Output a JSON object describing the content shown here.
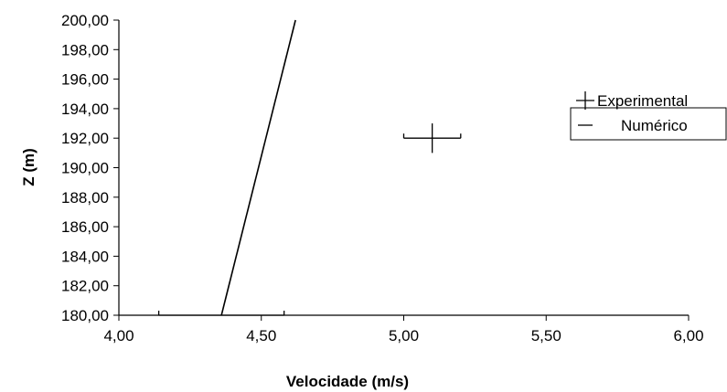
{
  "chart_data": {
    "type": "line",
    "xlabel": "Velocidade (m/s)",
    "ylabel": "Z (m)",
    "xlim": [
      4.0,
      6.0
    ],
    "ylim": [
      180.0,
      200.0
    ],
    "x_ticks": [
      "4,00",
      "4,50",
      "5,00",
      "5,50",
      "6,00"
    ],
    "y_ticks": [
      "180,00",
      "182,00",
      "184,00",
      "186,00",
      "188,00",
      "190,00",
      "192,00",
      "194,00",
      "196,00",
      "198,00",
      "200,00"
    ],
    "legend_position": "right",
    "series": [
      {
        "name": "Experimental",
        "marker": "cross",
        "error_bars": true,
        "points": [
          {
            "x": 4.36,
            "y": 180.0,
            "xerr": [
              4.14,
              4.58
            ]
          },
          {
            "x": 5.1,
            "y": 192.0,
            "xerr": [
              5.0,
              5.2
            ],
            "yerr": [
              191.0,
              193.0
            ]
          }
        ]
      },
      {
        "name": "Numérico",
        "marker": "line",
        "points": [
          {
            "x": 4.36,
            "y": 180.0
          },
          {
            "x": 4.62,
            "y": 200.0
          }
        ]
      }
    ],
    "grid": false
  }
}
